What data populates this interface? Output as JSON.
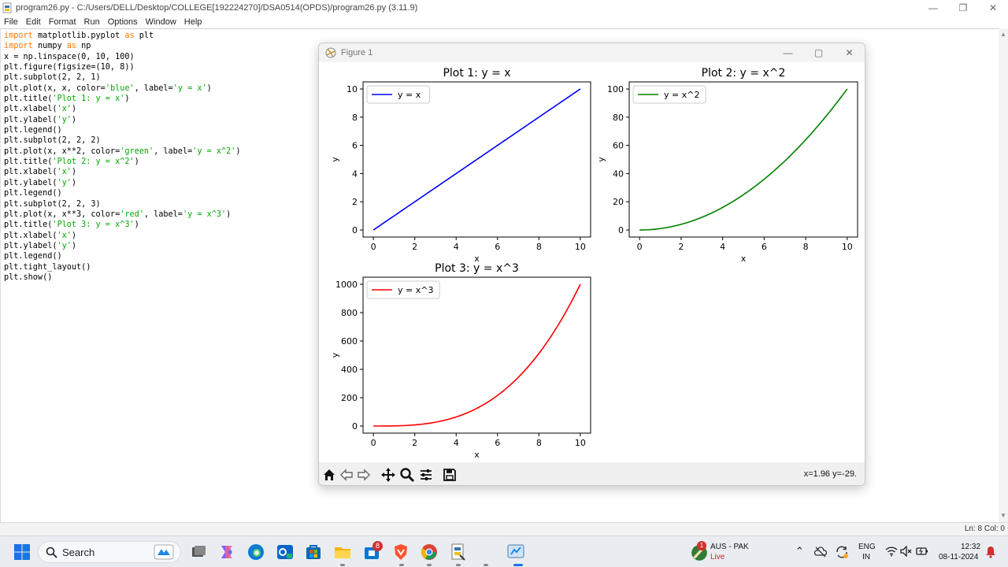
{
  "window": {
    "title": "program26.py - C:/Users/DELL/Desktop/COLLEGE[192224270]/DSA0514(OPDS)/program26.py (3.11.9)",
    "controls": [
      "—",
      "❐",
      "✕"
    ]
  },
  "menu": [
    "File",
    "Edit",
    "Format",
    "Run",
    "Options",
    "Window",
    "Help"
  ],
  "code": [
    [
      {
        "t": "kw",
        "v": "import"
      },
      {
        "t": "",
        "v": " matplotlib.pyplot "
      },
      {
        "t": "kw",
        "v": "as"
      },
      {
        "t": "",
        "v": " plt"
      }
    ],
    [
      {
        "t": "kw",
        "v": "import"
      },
      {
        "t": "",
        "v": " numpy "
      },
      {
        "t": "kw",
        "v": "as"
      },
      {
        "t": "",
        "v": " np"
      }
    ],
    [
      {
        "t": "",
        "v": "x = np.linspace(0, 10, 100)"
      }
    ],
    [
      {
        "t": "",
        "v": "plt.figure(figsize=(10, 8))"
      }
    ],
    [
      {
        "t": "",
        "v": "plt.subplot(2, 2, 1)"
      }
    ],
    [
      {
        "t": "",
        "v": "plt.plot(x, x, color="
      },
      {
        "t": "str",
        "v": "'blue'"
      },
      {
        "t": "",
        "v": ", label="
      },
      {
        "t": "str",
        "v": "'y = x'"
      },
      {
        "t": "",
        "v": ")"
      }
    ],
    [
      {
        "t": "",
        "v": "plt.title("
      },
      {
        "t": "str",
        "v": "'Plot 1: y = x'"
      },
      {
        "t": "",
        "v": ")"
      }
    ],
    [
      {
        "t": "",
        "v": "plt.xlabel("
      },
      {
        "t": "str",
        "v": "'x'"
      },
      {
        "t": "",
        "v": ")"
      }
    ],
    [
      {
        "t": "",
        "v": "plt.ylabel("
      },
      {
        "t": "str",
        "v": "'y'"
      },
      {
        "t": "",
        "v": ")"
      }
    ],
    [
      {
        "t": "",
        "v": "plt.legend()"
      }
    ],
    [
      {
        "t": "",
        "v": "plt.subplot(2, 2, 2)"
      }
    ],
    [
      {
        "t": "",
        "v": "plt.plot(x, x**2, color="
      },
      {
        "t": "str",
        "v": "'green'"
      },
      {
        "t": "",
        "v": ", label="
      },
      {
        "t": "str",
        "v": "'y = x^2'"
      },
      {
        "t": "",
        "v": ")"
      }
    ],
    [
      {
        "t": "",
        "v": "plt.title("
      },
      {
        "t": "str",
        "v": "'Plot 2: y = x^2'"
      },
      {
        "t": "",
        "v": ")"
      }
    ],
    [
      {
        "t": "",
        "v": "plt.xlabel("
      },
      {
        "t": "str",
        "v": "'x'"
      },
      {
        "t": "",
        "v": ")"
      }
    ],
    [
      {
        "t": "",
        "v": "plt.ylabel("
      },
      {
        "t": "str",
        "v": "'y'"
      },
      {
        "t": "",
        "v": ")"
      }
    ],
    [
      {
        "t": "",
        "v": "plt.legend()"
      }
    ],
    [
      {
        "t": "",
        "v": "plt.subplot(2, 2, 3)"
      }
    ],
    [
      {
        "t": "",
        "v": "plt.plot(x, x**3, color="
      },
      {
        "t": "str",
        "v": "'red'"
      },
      {
        "t": "",
        "v": ", label="
      },
      {
        "t": "str",
        "v": "'y = x^3'"
      },
      {
        "t": "",
        "v": ")"
      }
    ],
    [
      {
        "t": "",
        "v": "plt.title("
      },
      {
        "t": "str",
        "v": "'Plot 3: y = x^3'"
      },
      {
        "t": "",
        "v": ")"
      }
    ],
    [
      {
        "t": "",
        "v": "plt.xlabel("
      },
      {
        "t": "str",
        "v": "'x'"
      },
      {
        "t": "",
        "v": ")"
      }
    ],
    [
      {
        "t": "",
        "v": "plt.ylabel("
      },
      {
        "t": "str",
        "v": "'y'"
      },
      {
        "t": "",
        "v": ")"
      }
    ],
    [
      {
        "t": "",
        "v": "plt.legend()"
      }
    ],
    [
      {
        "t": "",
        "v": "plt.tight_layout()"
      }
    ],
    [
      {
        "t": "",
        "v": "plt.show()"
      }
    ]
  ],
  "status": "Ln: 8   Col: 0",
  "figure": {
    "title": "Figure 1",
    "coord_readout": "x=1.96 y=-29.",
    "toolbar": [
      "home-icon",
      "back-icon",
      "forward-icon",
      "pan-icon",
      "zoom-icon",
      "configure-icon",
      "save-icon"
    ]
  },
  "chart_data": [
    {
      "type": "line",
      "title": "Plot 1: y = x",
      "xlabel": "x",
      "ylabel": "y",
      "xlim": [
        -0.5,
        10.5
      ],
      "ylim": [
        -0.5,
        10.5
      ],
      "xticks": [
        0,
        2,
        4,
        6,
        8,
        10
      ],
      "yticks": [
        0,
        2,
        4,
        6,
        8,
        10
      ],
      "legend": "upper left",
      "series": [
        {
          "name": "y = x",
          "color": "#0000ff",
          "x": [
            0,
            10
          ],
          "y": [
            0,
            10
          ],
          "func": "x"
        }
      ]
    },
    {
      "type": "line",
      "title": "Plot 2: y = x^2",
      "xlabel": "x",
      "ylabel": "y",
      "xlim": [
        -0.5,
        10.5
      ],
      "ylim": [
        -5,
        105
      ],
      "xticks": [
        0,
        2,
        4,
        6,
        8,
        10
      ],
      "yticks": [
        0,
        20,
        40,
        60,
        80,
        100
      ],
      "legend": "upper left",
      "series": [
        {
          "name": "y = x^2",
          "color": "#008000",
          "x": [
            0,
            2,
            4,
            6,
            8,
            10
          ],
          "y": [
            0,
            4,
            16,
            36,
            64,
            100
          ],
          "func": "x2"
        }
      ]
    },
    {
      "type": "line",
      "title": "Plot 3: y = x^3",
      "xlabel": "x",
      "ylabel": "y",
      "xlim": [
        -0.5,
        10.5
      ],
      "ylim": [
        -50,
        1050
      ],
      "xticks": [
        0,
        2,
        4,
        6,
        8,
        10
      ],
      "yticks": [
        0,
        200,
        400,
        600,
        800,
        1000
      ],
      "legend": "upper left",
      "series": [
        {
          "name": "y = x^3",
          "color": "#ff0000",
          "x": [
            0,
            2,
            4,
            6,
            8,
            10
          ],
          "y": [
            0,
            8,
            64,
            216,
            512,
            1000
          ],
          "func": "x3"
        }
      ]
    }
  ],
  "taskbar": {
    "search_label": "Search",
    "weather_badge": "1",
    "match_title": "AUS - PAK",
    "match_status": "Live",
    "lang_1": "ENG",
    "lang_2": "IN",
    "time": "12:32",
    "date": "08-11-2024",
    "store_badge": "8"
  }
}
